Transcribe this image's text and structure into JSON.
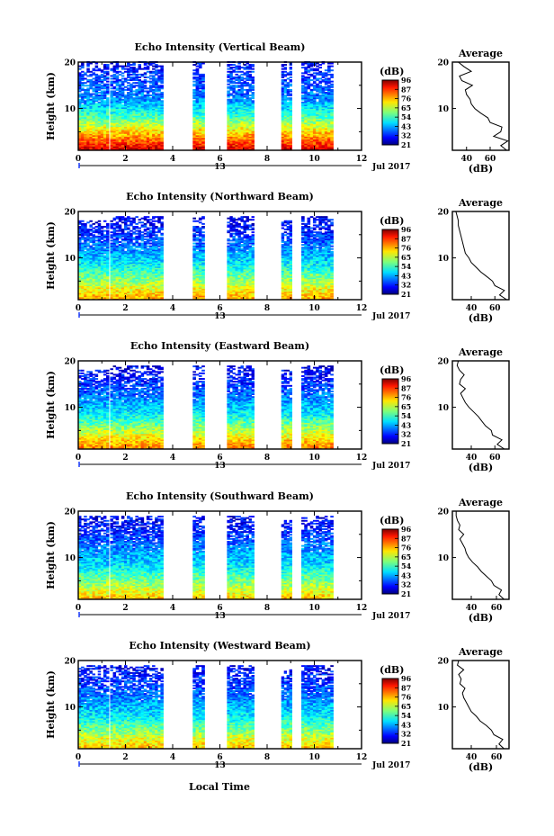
{
  "figure": {
    "xlabel": "Local Time",
    "colormap": "jet"
  },
  "chart_data": [
    {
      "type": "heatmap",
      "title": "Echo Intensity (Vertical Beam)",
      "xlabel": "",
      "ylabel": "Height (km)",
      "xlim": [
        0,
        12
      ],
      "ylim": [
        1,
        20
      ],
      "xticks": [
        "0",
        "2",
        "4",
        "6",
        "8",
        "10",
        "12"
      ],
      "yticks": [
        "10",
        "20"
      ],
      "date_label": "13",
      "month_label": "Jul 2017",
      "colorbar": {
        "title": "(dB)",
        "vmin": 21,
        "vmax": 96,
        "tick_labels": [
          "96",
          "87",
          "76",
          "65",
          "54",
          "43",
          "32",
          "21"
        ]
      },
      "data_segments": [
        [
          0,
          1.3
        ],
        [
          1.35,
          3.6
        ],
        [
          4.85,
          5.35
        ],
        [
          6.3,
          7.45
        ],
        [
          8.6,
          9.05
        ],
        [
          9.45,
          10.8
        ]
      ],
      "top_height_by_segment": [
        20,
        20,
        20,
        20,
        20,
        20
      ],
      "intensity_levels_dB": [
        [
          1,
          90
        ],
        [
          3,
          80
        ],
        [
          5,
          70
        ],
        [
          8,
          55
        ],
        [
          12,
          40
        ],
        [
          16,
          35
        ],
        [
          20,
          30
        ]
      ],
      "average_profile": {
        "title": "Average",
        "xlabel": "(dB)",
        "xticks": [
          "40",
          "60"
        ],
        "yticks": [
          "10",
          "20"
        ],
        "xlim": [
          28,
          76
        ],
        "height_km": [
          1,
          2,
          3,
          4,
          5,
          6,
          7,
          8,
          9,
          10,
          11,
          12,
          13,
          14,
          15,
          16,
          17,
          18,
          19,
          20
        ],
        "dB": [
          74,
          69,
          75,
          63,
          69,
          70,
          60,
          58,
          52,
          47,
          44,
          43,
          40,
          39,
          45,
          36,
          34,
          44,
          38,
          33
        ]
      }
    },
    {
      "type": "heatmap",
      "title": "Echo Intensity (Northward Beam)",
      "xlabel": "",
      "ylabel": "Height (km)",
      "xlim": [
        0,
        12
      ],
      "ylim": [
        1,
        20
      ],
      "xticks": [
        "0",
        "2",
        "4",
        "6",
        "8",
        "10",
        "12"
      ],
      "yticks": [
        "10",
        "20"
      ],
      "date_label": "13",
      "month_label": "Jul 2017",
      "colorbar": {
        "title": "(dB)",
        "vmin": 21,
        "vmax": 96,
        "tick_labels": [
          "96",
          "87",
          "76",
          "65",
          "54",
          "43",
          "32",
          "21"
        ]
      },
      "data_segments": [
        [
          0,
          1.3
        ],
        [
          1.35,
          3.6
        ],
        [
          4.85,
          5.35
        ],
        [
          6.3,
          7.45
        ],
        [
          8.6,
          9.05
        ],
        [
          9.45,
          10.8
        ]
      ],
      "top_height_by_segment": [
        18,
        19,
        19,
        19,
        18,
        19
      ],
      "intensity_levels_dB": [
        [
          1,
          75
        ],
        [
          3,
          68
        ],
        [
          5,
          60
        ],
        [
          8,
          50
        ],
        [
          12,
          40
        ],
        [
          16,
          32
        ],
        [
          20,
          28
        ]
      ],
      "average_profile": {
        "title": "Average",
        "xlabel": "(dB)",
        "xticks": [
          "40",
          "60"
        ],
        "yticks": [
          "10",
          "20"
        ],
        "xlim": [
          24,
          72
        ],
        "height_km": [
          1,
          2,
          3,
          4,
          5,
          6,
          7,
          8,
          9,
          10,
          11,
          12,
          13,
          14,
          15,
          16,
          17,
          18,
          19,
          20
        ],
        "dB": [
          70,
          64,
          68,
          60,
          58,
          53,
          48,
          44,
          40,
          38,
          35,
          34,
          33,
          32,
          31,
          30,
          29,
          29,
          28,
          27
        ]
      }
    },
    {
      "type": "heatmap",
      "title": "Echo Intensity (Eastward Beam)",
      "xlabel": "",
      "ylabel": "Height (km)",
      "xlim": [
        0,
        12
      ],
      "ylim": [
        1,
        20
      ],
      "xticks": [
        "0",
        "2",
        "4",
        "6",
        "8",
        "10",
        "12"
      ],
      "yticks": [
        "10",
        "20"
      ],
      "date_label": "13",
      "month_label": "Jul 2017",
      "colorbar": {
        "title": "(dB)",
        "vmin": 21,
        "vmax": 96,
        "tick_labels": [
          "96",
          "87",
          "76",
          "65",
          "54",
          "43",
          "32",
          "21"
        ]
      },
      "data_segments": [
        [
          0,
          1.3
        ],
        [
          1.35,
          3.6
        ],
        [
          4.85,
          5.35
        ],
        [
          6.3,
          7.45
        ],
        [
          8.6,
          9.05
        ],
        [
          9.45,
          10.8
        ]
      ],
      "top_height_by_segment": [
        18,
        19,
        19,
        19,
        18,
        19
      ],
      "intensity_levels_dB": [
        [
          1,
          78
        ],
        [
          3,
          70
        ],
        [
          5,
          62
        ],
        [
          8,
          50
        ],
        [
          12,
          40
        ],
        [
          16,
          32
        ],
        [
          20,
          28
        ]
      ],
      "average_profile": {
        "title": "Average",
        "xlabel": "(dB)",
        "xticks": [
          "40",
          "60"
        ],
        "yticks": [
          "10",
          "20"
        ],
        "xlim": [
          24,
          72
        ],
        "height_km": [
          1,
          2,
          3,
          4,
          5,
          6,
          7,
          8,
          9,
          10,
          11,
          12,
          13,
          14,
          15,
          16,
          17,
          18,
          19,
          20
        ],
        "dB": [
          68,
          62,
          66,
          58,
          57,
          52,
          49,
          46,
          42,
          38,
          35,
          33,
          31,
          35,
          30,
          31,
          34,
          30,
          28,
          29
        ]
      }
    },
    {
      "type": "heatmap",
      "title": "Echo Intensity (Southward Beam)",
      "xlabel": "",
      "ylabel": "Height (km)",
      "xlim": [
        0,
        12
      ],
      "ylim": [
        1,
        20
      ],
      "xticks": [
        "0",
        "2",
        "4",
        "6",
        "8",
        "10",
        "12"
      ],
      "yticks": [
        "10",
        "20"
      ],
      "date_label": "13",
      "month_label": "Jul 2017",
      "colorbar": {
        "title": "(dB)",
        "vmin": 21,
        "vmax": 96,
        "tick_labels": [
          "96",
          "87",
          "76",
          "65",
          "54",
          "43",
          "32",
          "21"
        ]
      },
      "data_segments": [
        [
          0,
          1.3
        ],
        [
          1.35,
          3.6
        ],
        [
          4.85,
          5.35
        ],
        [
          6.3,
          7.45
        ],
        [
          8.6,
          9.05
        ],
        [
          9.45,
          10.8
        ]
      ],
      "top_height_by_segment": [
        19,
        19,
        19,
        19,
        18,
        19
      ],
      "intensity_levels_dB": [
        [
          1,
          72
        ],
        [
          3,
          65
        ],
        [
          5,
          58
        ],
        [
          8,
          48
        ],
        [
          12,
          40
        ],
        [
          16,
          32
        ],
        [
          20,
          28
        ]
      ],
      "average_profile": {
        "title": "Average",
        "xlabel": "(dB)",
        "xticks": [
          "40",
          "60"
        ],
        "yticks": [
          "10",
          "20"
        ],
        "xlim": [
          25,
          70
        ],
        "height_km": [
          1,
          2,
          3,
          4,
          5,
          6,
          7,
          8,
          9,
          10,
          11,
          12,
          13,
          14,
          15,
          16,
          17,
          18,
          19,
          20
        ],
        "dB": [
          66,
          62,
          64,
          58,
          56,
          52,
          48,
          45,
          41,
          38,
          36,
          35,
          33,
          31,
          34,
          30,
          31,
          29,
          28,
          28
        ]
      }
    },
    {
      "type": "heatmap",
      "title": "Echo Intensity (Westward Beam)",
      "xlabel": "Local Time",
      "ylabel": "Height (km)",
      "xlim": [
        0,
        12
      ],
      "ylim": [
        1,
        20
      ],
      "xticks": [
        "0",
        "2",
        "4",
        "6",
        "8",
        "10",
        "12"
      ],
      "yticks": [
        "10",
        "20"
      ],
      "date_label": "13",
      "month_label": "Jul 2017",
      "colorbar": {
        "title": "(dB)",
        "vmin": 21,
        "vmax": 96,
        "tick_labels": [
          "96",
          "87",
          "76",
          "65",
          "54",
          "43",
          "32",
          "21"
        ]
      },
      "data_segments": [
        [
          0,
          1.3
        ],
        [
          1.35,
          3.6
        ],
        [
          4.85,
          5.35
        ],
        [
          6.3,
          7.45
        ],
        [
          8.6,
          9.05
        ],
        [
          9.45,
          10.8
        ]
      ],
      "top_height_by_segment": [
        19,
        19,
        19,
        19,
        18,
        19
      ],
      "intensity_levels_dB": [
        [
          1,
          72
        ],
        [
          3,
          66
        ],
        [
          5,
          58
        ],
        [
          8,
          48
        ],
        [
          12,
          40
        ],
        [
          16,
          33
        ],
        [
          20,
          28
        ]
      ],
      "average_profile": {
        "title": "Average",
        "xlabel": "(dB)",
        "xticks": [
          "40",
          "60"
        ],
        "yticks": [
          "10",
          "20"
        ],
        "xlim": [
          25,
          70
        ],
        "height_km": [
          1,
          2,
          3,
          4,
          5,
          6,
          7,
          8,
          9,
          10,
          11,
          12,
          13,
          14,
          15,
          16,
          17,
          18,
          19,
          20
        ],
        "dB": [
          66,
          62,
          65,
          58,
          56,
          52,
          47,
          44,
          40,
          38,
          36,
          34,
          33,
          35,
          31,
          32,
          30,
          34,
          29,
          30
        ]
      }
    }
  ]
}
